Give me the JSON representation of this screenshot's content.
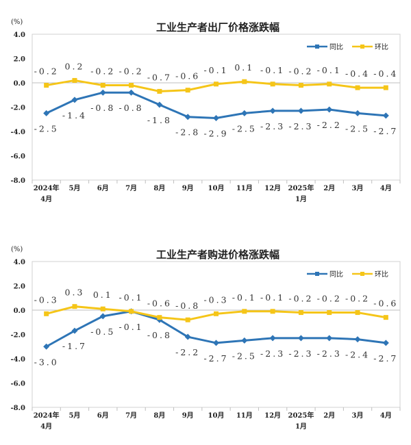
{
  "chart_data": [
    {
      "type": "line",
      "title": "工业生产者出厂价格涨跌幅",
      "unit_label": "(%)",
      "categories": [
        [
          "2024年",
          "4月"
        ],
        [
          "5月"
        ],
        [
          "6月"
        ],
        [
          "7月"
        ],
        [
          "8月"
        ],
        [
          "9月"
        ],
        [
          "10月"
        ],
        [
          "11月"
        ],
        [
          "12月"
        ],
        [
          "2025年",
          "1月"
        ],
        [
          "2月"
        ],
        [
          "3月"
        ],
        [
          "4月"
        ]
      ],
      "ylim": [
        -8.0,
        4.0
      ],
      "yticks": [
        4.0,
        2.0,
        0.0,
        -2.0,
        -4.0,
        -6.0,
        -8.0
      ],
      "ytick_labels": [
        "4.0",
        "2.0",
        "0.0",
        "-2.0",
        "-4.0",
        "-6.0",
        "-8.0"
      ],
      "legend_position": "top-right",
      "series": [
        {
          "name": "同比",
          "color": "#2e75b6",
          "values": [
            -2.5,
            -1.4,
            -0.8,
            -0.8,
            -1.8,
            -2.8,
            -2.9,
            -2.5,
            -2.3,
            -2.3,
            -2.2,
            -2.5,
            -2.7
          ],
          "labels": [
            "-2.5",
            "-1.4",
            "-0.8",
            "-0.8",
            "-1.8",
            "-2.8",
            "-2.9",
            "-2.5",
            "-2.3",
            "-2.3",
            "-2.2",
            "-2.5",
            "-2.7"
          ]
        },
        {
          "name": "环比",
          "color": "#f5c518",
          "values": [
            -0.2,
            0.2,
            -0.2,
            -0.2,
            -0.7,
            -0.6,
            -0.1,
            0.1,
            -0.1,
            -0.2,
            -0.1,
            -0.4,
            -0.4
          ],
          "labels": [
            "-0.2",
            "0.2",
            "-0.2",
            "-0.2",
            "-0.7",
            "-0.6",
            "-0.1",
            "0.1",
            "-0.1",
            "-0.2",
            "-0.1",
            "-0.4",
            "-0.4"
          ]
        }
      ]
    },
    {
      "type": "line",
      "title": "工业生产者购进价格涨跌幅",
      "unit_label": "(%)",
      "categories": [
        [
          "2024年",
          "4月"
        ],
        [
          "5月"
        ],
        [
          "6月"
        ],
        [
          "7月"
        ],
        [
          "8月"
        ],
        [
          "9月"
        ],
        [
          "10月"
        ],
        [
          "11月"
        ],
        [
          "12月"
        ],
        [
          "2025年",
          "1月"
        ],
        [
          "2月"
        ],
        [
          "3月"
        ],
        [
          "4月"
        ]
      ],
      "ylim": [
        -8.0,
        4.0
      ],
      "yticks": [
        4.0,
        2.0,
        0.0,
        -2.0,
        -4.0,
        -6.0,
        -8.0
      ],
      "ytick_labels": [
        "4.0",
        "2.0",
        "0.0",
        "-2.0",
        "-4.0",
        "-6.0",
        "-8.0"
      ],
      "legend_position": "top-right",
      "series": [
        {
          "name": "同比",
          "color": "#2e75b6",
          "values": [
            -3.0,
            -1.7,
            -0.5,
            -0.1,
            -0.8,
            -2.2,
            -2.7,
            -2.5,
            -2.3,
            -2.3,
            -2.3,
            -2.4,
            -2.7
          ],
          "labels": [
            "-3.0",
            "-1.7",
            "-0.5",
            "-0.1",
            "-0.8",
            "-2.2",
            "-2.7",
            "-2.5",
            "-2.3",
            "-2.3",
            "-2.3",
            "-2.4",
            "-2.7"
          ]
        },
        {
          "name": "环比",
          "color": "#f5c518",
          "values": [
            -0.3,
            0.3,
            0.1,
            -0.1,
            -0.6,
            -0.8,
            -0.3,
            -0.1,
            -0.1,
            -0.2,
            -0.2,
            -0.2,
            -0.6
          ],
          "labels": [
            "-0.3",
            "0.3",
            "0.1",
            "-0.1",
            "-0.6",
            "-0.8",
            "-0.3",
            "-0.1",
            "-0.1",
            "-0.2",
            "-0.2",
            "-0.2",
            "-0.6"
          ]
        }
      ]
    }
  ]
}
